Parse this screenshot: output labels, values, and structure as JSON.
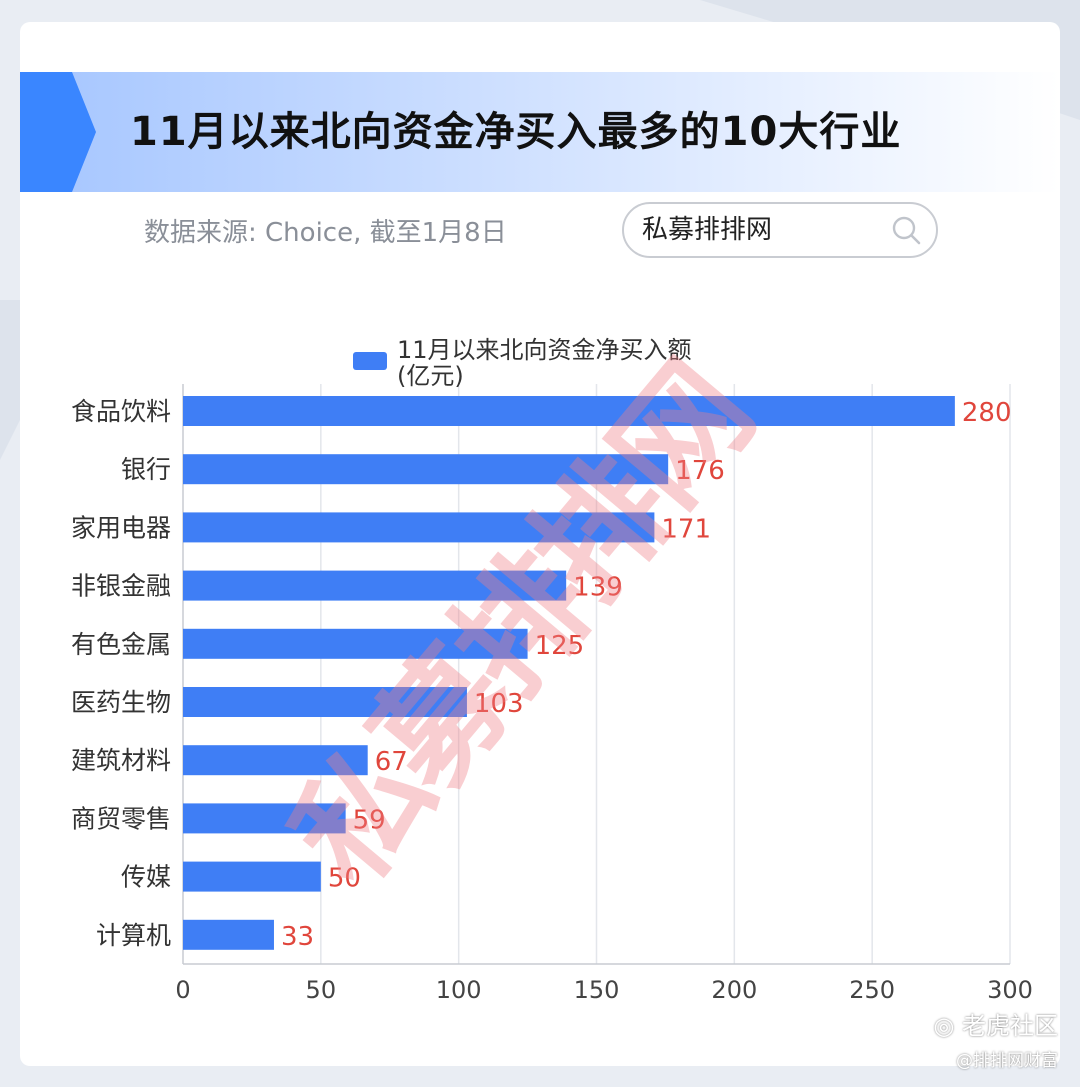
{
  "header": {
    "title": "11月以来北向资金净买入最多的10大行业",
    "source": "数据来源: Choice, 截至1月8日"
  },
  "search": {
    "text": "私募排排网",
    "icon": "search-icon"
  },
  "watermark": {
    "text": "私募排排网"
  },
  "footer": {
    "brand": "老虎社区",
    "handle": "@排排网财富"
  },
  "colors": {
    "bar": "#3f7ef5",
    "value_label": "#e0463c",
    "banner_accent": "#3a86ff"
  },
  "chart_data": {
    "type": "bar",
    "orientation": "horizontal",
    "categories": [
      "食品饮料",
      "银行",
      "家用电器",
      "非银金融",
      "有色金属",
      "医药生物",
      "建筑材料",
      "商贸零售",
      "传媒",
      "计算机"
    ],
    "series": [
      {
        "name": "11月以来北向资金净买入额(亿元)",
        "legend_lines": [
          "11月以来北向资金净买入额",
          "(亿元)"
        ],
        "values": [
          280,
          176,
          171,
          139,
          125,
          103,
          67,
          59,
          50,
          33
        ]
      }
    ],
    "x_ticks": [
      "0",
      "50",
      "100",
      "150",
      "200",
      "250",
      "300"
    ],
    "xlim": [
      0,
      300
    ],
    "grid": "vertical",
    "legend_position": "top-center"
  }
}
